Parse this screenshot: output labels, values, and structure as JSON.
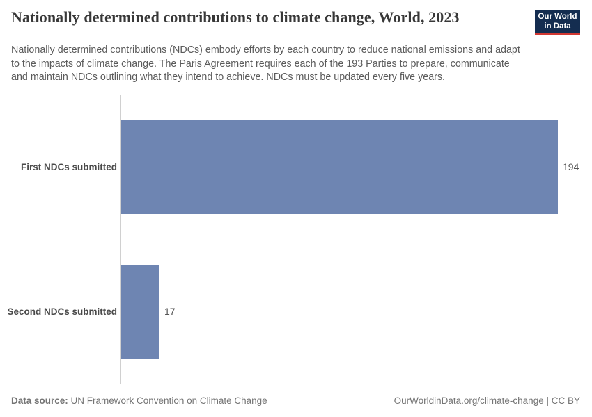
{
  "header": {
    "title": "Nationally determined contributions to climate change, World, 2023",
    "subtitle": "Nationally determined contributions (NDCs) embody efforts by each country to reduce national emissions and adapt to the impacts of climate change. The Paris Agreement requires each of the 193 Parties to prepare, communicate and maintain NDCs outlining what they intend to achieve. NDCs must be updated every five years.",
    "logo": {
      "line1": "Our World",
      "line2": "in Data"
    }
  },
  "chart_data": {
    "type": "bar",
    "orientation": "horizontal",
    "title": "Nationally determined contributions to climate change, World, 2023",
    "categories": [
      "First NDCs submitted",
      "Second NDCs submitted"
    ],
    "values": [
      194,
      17
    ],
    "xlabel": "",
    "ylabel": "",
    "xlim": [
      0,
      194
    ],
    "grid": false,
    "legend": "none",
    "value_labels": [
      "194",
      "17"
    ]
  },
  "footer": {
    "source_label": "Data source:",
    "source_value": " UN Framework Convention on Climate Change",
    "link_text": "OurWorldinData.org/climate-change",
    "separator": " | ",
    "license_text": "CC BY"
  },
  "colors": {
    "bar": "#6e85b2",
    "axis_line": "#d0d0d0",
    "logo_bg": "#142d50",
    "logo_accent": "#d13832",
    "title_text": "#383838",
    "subtitle_text": "#5b5b5b"
  }
}
